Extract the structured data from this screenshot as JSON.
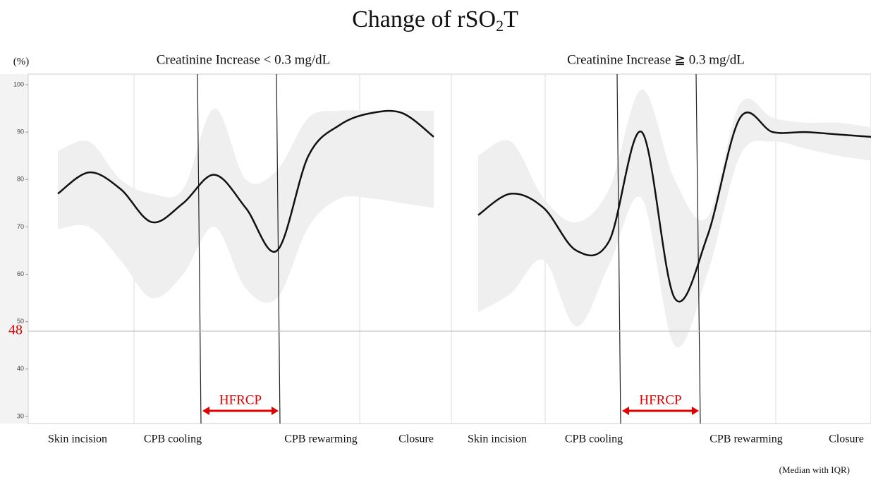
{
  "header": {
    "title_parts": [
      "Change of rSO",
      "2",
      "T"
    ],
    "ylabel": "(%)",
    "note": "(Median with IQR)"
  },
  "chart_data": [
    {
      "type": "line",
      "subtitle": "Creatinine Increase < 0.3 mg/dL",
      "x_labels": [
        "Skin incision",
        "CPB cooling",
        "CPB rewarming",
        "Closure"
      ],
      "annotation": "HFRCP",
      "reference": 48,
      "reference_color": "#e00000",
      "ylim": [
        30,
        100
      ],
      "yticks": [
        30,
        40,
        50,
        60,
        70,
        80,
        90,
        100
      ],
      "color": "#111111",
      "band_color": "#efefef",
      "values": [
        77,
        81.5,
        78,
        71,
        75,
        81,
        74,
        65,
        85,
        91.5,
        94,
        94,
        89
      ],
      "upper": [
        86,
        88,
        80,
        77,
        78,
        95,
        80,
        82,
        93,
        94.5,
        94.5,
        94.5,
        94.5
      ],
      "lower": [
        69.5,
        70,
        63,
        55,
        60,
        70,
        57,
        55,
        70,
        76,
        76,
        75,
        74
      ]
    },
    {
      "type": "line",
      "subtitle": "Creatinine Increase ≧ 0.3 mg/dL",
      "x_labels": [
        "Skin incision",
        "CPB cooling",
        "CPB rewarming",
        "Closure"
      ],
      "annotation": "HFRCP",
      "ylim": [
        30,
        100
      ],
      "color": "#111111",
      "band_color": "#efefef",
      "values": [
        72.5,
        77,
        74,
        65,
        67,
        90,
        55,
        68,
        93,
        90,
        90,
        89.5,
        89
      ],
      "upper": [
        85,
        88,
        76,
        71,
        78,
        99,
        80,
        72,
        96,
        93,
        92,
        92,
        91
      ],
      "lower": [
        52,
        56,
        63,
        49,
        62,
        76,
        45,
        60,
        85,
        88,
        86.5,
        85,
        84
      ]
    }
  ]
}
